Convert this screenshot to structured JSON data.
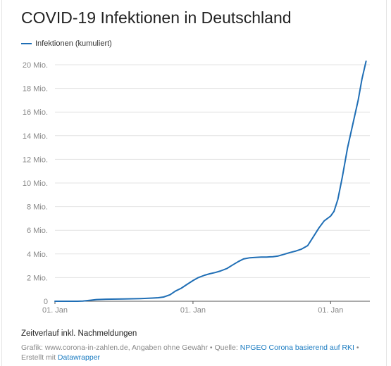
{
  "header": {
    "title": "COVID-19 Infektionen in Deutschland"
  },
  "colors": {
    "series": "#1f6eb5",
    "grid": "#e3e3e3",
    "axis": "#555555",
    "link": "#1a7bc1"
  },
  "footer": {
    "note": "Zeitverlauf inkl. Nachmeldungen",
    "source_prefix": "Grafik: www.corona-in-zahlen.de, Angaben ohne Gewähr • Quelle: ",
    "source_link": "NPGEO Corona basierend auf RKI",
    "created_prefix": " • Erstellt mit ",
    "created_link": "Datawrapper"
  },
  "chart_data": {
    "type": "line",
    "title": "COVID-19 Infektionen in Deutschland",
    "xlabel": "",
    "ylabel": "",
    "legend": "top-left",
    "grid": true,
    "ylim": [
      0,
      20
    ],
    "yticks": [
      0,
      2,
      4,
      6,
      8,
      10,
      12,
      14,
      16,
      18,
      20
    ],
    "ytick_labels": [
      "0",
      "2 Mio.",
      "4 Mio.",
      "6 Mio.",
      "8 Mio.",
      "10 Mio.",
      "12 Mio.",
      "14 Mio.",
      "16 Mio.",
      "18 Mio.",
      "20 Mio."
    ],
    "xlim": [
      "2020-01-01",
      "2022-04-15"
    ],
    "xticks": [
      "2020-01-01",
      "2021-01-01",
      "2022-01-01"
    ],
    "xtick_labels": [
      "01. Jan",
      "01. Jan",
      "01. Jan"
    ],
    "y_unit": "Mio.",
    "series": [
      {
        "name": "Infektionen (kumuliert)",
        "points": [
          [
            "2020-01-01",
            0
          ],
          [
            "2020-03-01",
            0.0
          ],
          [
            "2020-03-15",
            0.01
          ],
          [
            "2020-04-01",
            0.07
          ],
          [
            "2020-04-20",
            0.14
          ],
          [
            "2020-05-15",
            0.175
          ],
          [
            "2020-06-30",
            0.195
          ],
          [
            "2020-08-15",
            0.225
          ],
          [
            "2020-09-15",
            0.265
          ],
          [
            "2020-10-01",
            0.3
          ],
          [
            "2020-10-15",
            0.36
          ],
          [
            "2020-11-01",
            0.55
          ],
          [
            "2020-11-15",
            0.85
          ],
          [
            "2020-12-01",
            1.1
          ],
          [
            "2020-12-15",
            1.4
          ],
          [
            "2021-01-01",
            1.75
          ],
          [
            "2021-01-15",
            2.0
          ],
          [
            "2021-02-01",
            2.2
          ],
          [
            "2021-02-15",
            2.33
          ],
          [
            "2021-03-01",
            2.43
          ],
          [
            "2021-03-15",
            2.56
          ],
          [
            "2021-04-01",
            2.77
          ],
          [
            "2021-04-15",
            3.05
          ],
          [
            "2021-05-01",
            3.35
          ],
          [
            "2021-05-15",
            3.58
          ],
          [
            "2021-06-01",
            3.68
          ],
          [
            "2021-06-15",
            3.71
          ],
          [
            "2021-07-01",
            3.73
          ],
          [
            "2021-07-15",
            3.74
          ],
          [
            "2021-08-01",
            3.77
          ],
          [
            "2021-08-15",
            3.83
          ],
          [
            "2021-09-01",
            3.98
          ],
          [
            "2021-09-15",
            4.12
          ],
          [
            "2021-10-01",
            4.25
          ],
          [
            "2021-10-15",
            4.4
          ],
          [
            "2021-11-01",
            4.7
          ],
          [
            "2021-11-15",
            5.4
          ],
          [
            "2021-12-01",
            6.2
          ],
          [
            "2021-12-15",
            6.8
          ],
          [
            "2022-01-01",
            7.2
          ],
          [
            "2022-01-10",
            7.6
          ],
          [
            "2022-01-20",
            8.6
          ],
          [
            "2022-02-01",
            10.5
          ],
          [
            "2022-02-15",
            13.0
          ],
          [
            "2022-03-01",
            15.0
          ],
          [
            "2022-03-15",
            17.0
          ],
          [
            "2022-03-25",
            18.8
          ],
          [
            "2022-04-05",
            20.3
          ]
        ]
      }
    ]
  }
}
